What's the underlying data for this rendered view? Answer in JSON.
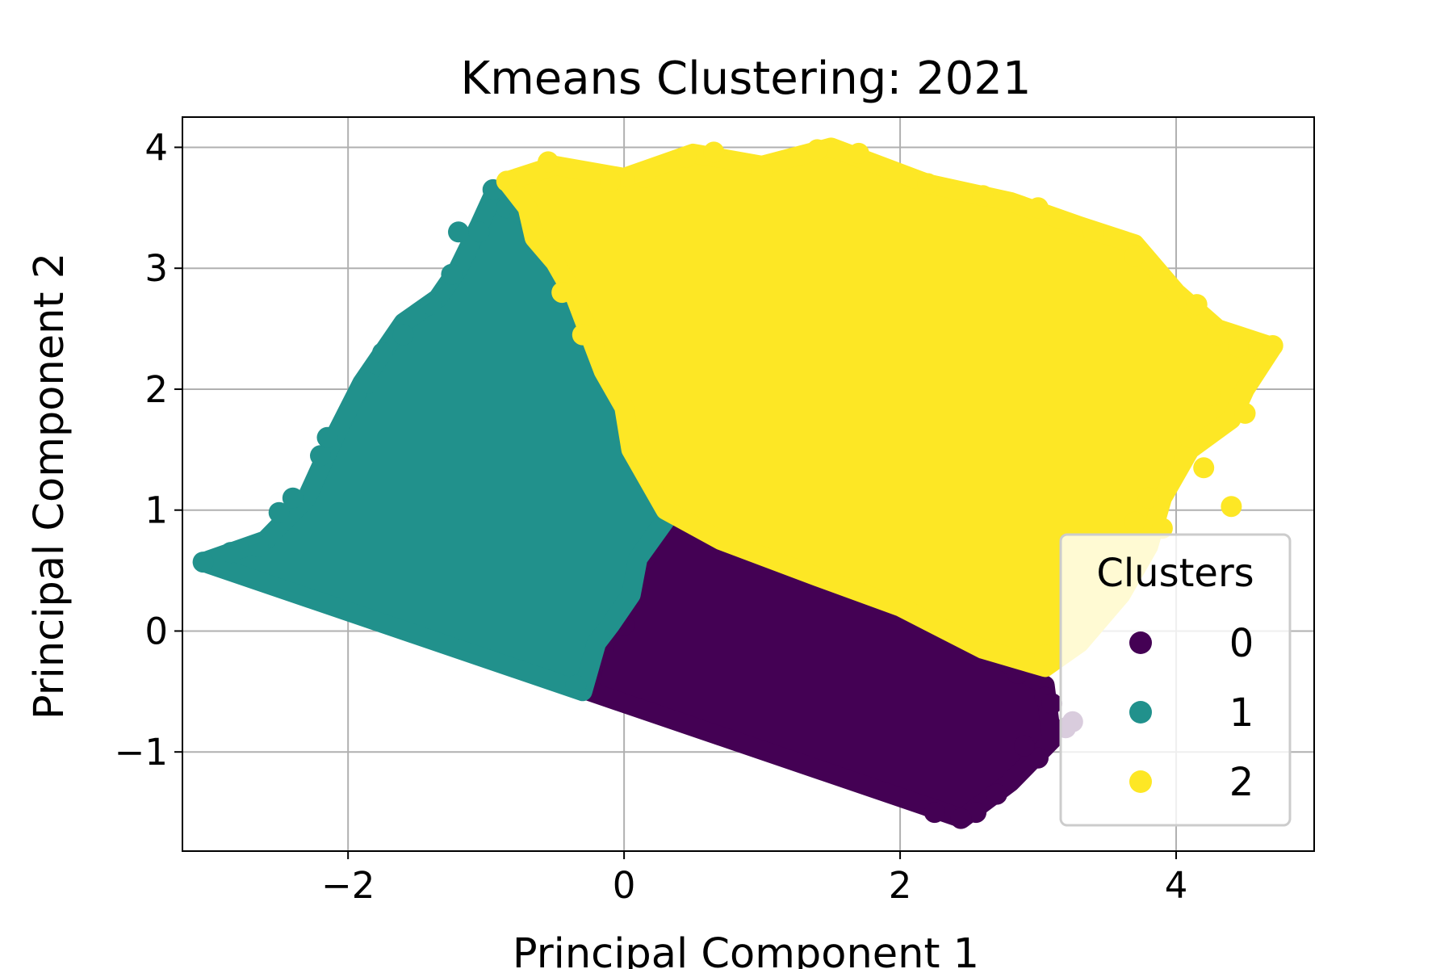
{
  "chart_data": {
    "type": "scatter",
    "title": "Kmeans Clustering: 2021",
    "xlabel": "Principal Component 1",
    "ylabel": "Principal Component 2",
    "xlim": [
      -3.2,
      5.0
    ],
    "ylim": [
      -1.82,
      4.25
    ],
    "xticks": [
      -2,
      0,
      2,
      4
    ],
    "yticks": [
      -1,
      0,
      1,
      2,
      3,
      4
    ],
    "xtick_labels": [
      "−2",
      "0",
      "2",
      "4"
    ],
    "ytick_labels": [
      "−1",
      "0",
      "1",
      "2",
      "3",
      "4"
    ],
    "grid": true,
    "legend": {
      "title": "Clusters",
      "placement": "lower-right",
      "entries": [
        "0",
        "1",
        "2"
      ]
    },
    "series": [
      {
        "name": "0",
        "color": "#440154",
        "region": [
          [
            0.3,
            1.0
          ],
          [
            0.7,
            0.75
          ],
          [
            1.4,
            0.45
          ],
          [
            2.0,
            0.2
          ],
          [
            2.6,
            -0.15
          ],
          [
            3.05,
            -0.45
          ],
          [
            3.1,
            -0.9
          ],
          [
            2.8,
            -1.25
          ],
          [
            2.45,
            -1.55
          ],
          [
            -0.25,
            -0.5
          ],
          [
            -0.2,
            -0.1
          ],
          [
            -0.1,
            0.05
          ],
          [
            0.05,
            0.3
          ],
          [
            0.1,
            0.6
          ],
          [
            0.2,
            0.85
          ]
        ],
        "points": [
          [
            0.32,
            0.97
          ],
          [
            0.55,
            0.85
          ],
          [
            0.75,
            0.72
          ],
          [
            1.0,
            0.6
          ],
          [
            1.3,
            0.45
          ],
          [
            1.6,
            0.35
          ],
          [
            1.9,
            0.2
          ],
          [
            2.3,
            0.05
          ],
          [
            2.6,
            -0.1
          ],
          [
            2.85,
            -0.35
          ],
          [
            3.05,
            -0.55
          ],
          [
            3.2,
            -0.8
          ],
          [
            3.0,
            -1.05
          ],
          [
            2.9,
            -0.95
          ],
          [
            2.7,
            -1.35
          ],
          [
            2.55,
            -1.5
          ],
          [
            2.44,
            -1.55
          ],
          [
            2.25,
            -1.5
          ],
          [
            -0.25,
            -0.35
          ],
          [
            -0.15,
            -0.15
          ],
          [
            0.0,
            0.05
          ],
          [
            0.1,
            0.4
          ],
          [
            0.15,
            0.6
          ],
          [
            3.1,
            -0.6
          ],
          [
            3.25,
            -0.75
          ]
        ]
      },
      {
        "name": "1",
        "color": "#21918c",
        "region": [
          [
            -3.05,
            0.57
          ],
          [
            -2.6,
            0.75
          ],
          [
            -2.3,
            1.1
          ],
          [
            -2.1,
            1.6
          ],
          [
            -1.9,
            2.05
          ],
          [
            -1.6,
            2.55
          ],
          [
            -1.35,
            2.75
          ],
          [
            -1.2,
            3.0
          ],
          [
            -1.05,
            3.35
          ],
          [
            -0.95,
            3.6
          ],
          [
            -0.7,
            3.5
          ],
          [
            -0.65,
            3.25
          ],
          [
            -0.5,
            3.05
          ],
          [
            -0.35,
            2.75
          ],
          [
            -0.25,
            2.45
          ],
          [
            -0.15,
            2.15
          ],
          [
            0.0,
            1.85
          ],
          [
            0.05,
            1.5
          ],
          [
            0.2,
            1.2
          ],
          [
            0.32,
            0.95
          ],
          [
            0.1,
            0.6
          ],
          [
            0.05,
            0.3
          ],
          [
            -0.1,
            0.05
          ],
          [
            -0.2,
            -0.1
          ],
          [
            -0.3,
            -0.5
          ]
        ],
        "points": [
          [
            -3.05,
            0.57
          ],
          [
            -2.85,
            0.65
          ],
          [
            -2.65,
            0.7
          ],
          [
            -2.5,
            0.98
          ],
          [
            -2.4,
            1.1
          ],
          [
            -2.2,
            1.45
          ],
          [
            -2.15,
            1.6
          ],
          [
            -1.85,
            2.05
          ],
          [
            -1.75,
            2.3
          ],
          [
            -1.6,
            2.45
          ],
          [
            -1.4,
            2.7
          ],
          [
            -1.25,
            2.95
          ],
          [
            -1.2,
            3.3
          ],
          [
            -1.05,
            3.3
          ],
          [
            -0.95,
            3.65
          ],
          [
            -0.85,
            3.5
          ],
          [
            -0.75,
            3.45
          ],
          [
            -0.55,
            3.15
          ],
          [
            -0.45,
            2.85
          ],
          [
            -0.3,
            2.45
          ],
          [
            -0.1,
            2.0
          ],
          [
            0.0,
            1.75
          ],
          [
            0.15,
            1.3
          ],
          [
            0.25,
            1.1
          ],
          [
            -0.35,
            -0.45
          ]
        ]
      },
      {
        "name": "2",
        "color": "#fde725",
        "region": [
          [
            -0.85,
            3.72
          ],
          [
            -0.5,
            3.85
          ],
          [
            0.0,
            3.75
          ],
          [
            0.5,
            3.95
          ],
          [
            1.0,
            3.85
          ],
          [
            1.5,
            4.0
          ],
          [
            2.2,
            3.7
          ],
          [
            2.8,
            3.55
          ],
          [
            3.3,
            3.35
          ],
          [
            3.7,
            3.2
          ],
          [
            4.0,
            2.8
          ],
          [
            4.3,
            2.5
          ],
          [
            4.7,
            2.35
          ],
          [
            4.5,
            2.0
          ],
          [
            4.4,
            1.75
          ],
          [
            4.1,
            1.5
          ],
          [
            3.9,
            1.1
          ],
          [
            3.8,
            0.7
          ],
          [
            3.6,
            0.3
          ],
          [
            3.3,
            -0.1
          ],
          [
            3.05,
            -0.3
          ],
          [
            2.6,
            -0.15
          ],
          [
            2.0,
            0.2
          ],
          [
            1.4,
            0.45
          ],
          [
            0.7,
            0.75
          ],
          [
            0.3,
            1.0
          ],
          [
            0.05,
            1.5
          ],
          [
            0.0,
            1.85
          ],
          [
            -0.15,
            2.15
          ],
          [
            -0.25,
            2.45
          ],
          [
            -0.35,
            2.75
          ],
          [
            -0.5,
            3.05
          ],
          [
            -0.65,
            3.25
          ],
          [
            -0.7,
            3.5
          ]
        ],
        "points": [
          [
            -0.85,
            3.72
          ],
          [
            -0.55,
            3.88
          ],
          [
            -0.1,
            3.72
          ],
          [
            0.15,
            3.75
          ],
          [
            0.45,
            3.92
          ],
          [
            0.65,
            3.96
          ],
          [
            1.0,
            3.8
          ],
          [
            1.4,
            3.98
          ],
          [
            1.7,
            3.95
          ],
          [
            2.2,
            3.7
          ],
          [
            2.6,
            3.6
          ],
          [
            3.0,
            3.5
          ],
          [
            3.4,
            3.3
          ],
          [
            3.7,
            3.1
          ],
          [
            3.9,
            2.9
          ],
          [
            4.15,
            2.7
          ],
          [
            4.3,
            2.45
          ],
          [
            4.45,
            2.35
          ],
          [
            4.7,
            2.36
          ],
          [
            4.25,
            1.95
          ],
          [
            4.5,
            1.8
          ],
          [
            4.1,
            1.6
          ],
          [
            4.2,
            1.35
          ],
          [
            3.8,
            1.1
          ],
          [
            4.4,
            1.03
          ],
          [
            3.7,
            0.9
          ],
          [
            3.9,
            0.85
          ],
          [
            3.5,
            0.3
          ],
          [
            3.3,
            0.0
          ],
          [
            3.05,
            -0.2
          ],
          [
            -0.3,
            2.45
          ],
          [
            -0.45,
            2.8
          ]
        ]
      }
    ]
  }
}
